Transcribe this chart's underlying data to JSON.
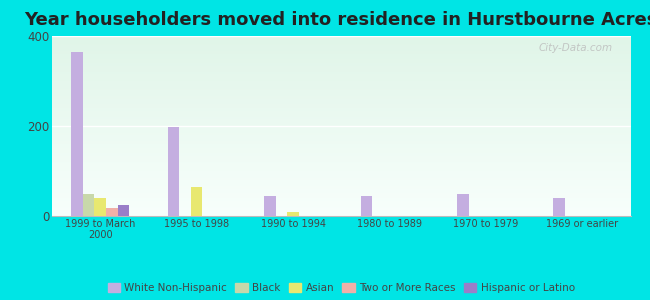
{
  "title": "Year householders moved into residence in Hurstbourne Acres",
  "categories": [
    "1999 to March\n2000",
    "1995 to 1998",
    "1990 to 1994",
    "1980 to 1989",
    "1970 to 1979",
    "1969 or earlier"
  ],
  "series": {
    "White Non-Hispanic": [
      365,
      197,
      45,
      45,
      50,
      40
    ],
    "Black": [
      50,
      0,
      0,
      0,
      0,
      0
    ],
    "Asian": [
      40,
      65,
      10,
      0,
      0,
      0
    ],
    "Two or More Races": [
      18,
      0,
      0,
      0,
      0,
      0
    ],
    "Hispanic or Latino": [
      25,
      0,
      0,
      0,
      0,
      0
    ]
  },
  "colors": {
    "White Non-Hispanic": "#c4aee0",
    "Black": "#c8d8aa",
    "Asian": "#e8e870",
    "Two or More Races": "#f0b0a8",
    "Hispanic or Latino": "#9a7ec8"
  },
  "ylim": [
    0,
    400
  ],
  "yticks": [
    0,
    200,
    400
  ],
  "fig_bg": "#00e5e5",
  "plot_bg_top": "#e0f5e8",
  "plot_bg_bottom": "#f5fff8",
  "watermark": "City-Data.com",
  "title_fontsize": 13,
  "bar_width": 0.12
}
